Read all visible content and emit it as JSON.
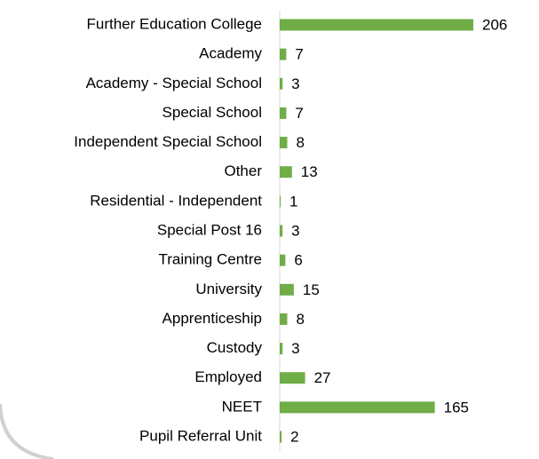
{
  "chart_data": {
    "type": "bar",
    "orientation": "horizontal",
    "categories": [
      "Further Education College",
      "Academy",
      "Academy - Special School",
      "Special School",
      "Independent Special School",
      "Other",
      "Residential - Independent",
      "Special Post 16",
      "Training Centre",
      "University",
      "Apprenticeship",
      "Custody",
      "Employed",
      "NEET",
      "Pupil Referral Unit"
    ],
    "values": [
      206,
      7,
      3,
      7,
      8,
      13,
      1,
      3,
      6,
      15,
      8,
      3,
      27,
      165,
      2
    ],
    "color": "#70ad47"
  }
}
